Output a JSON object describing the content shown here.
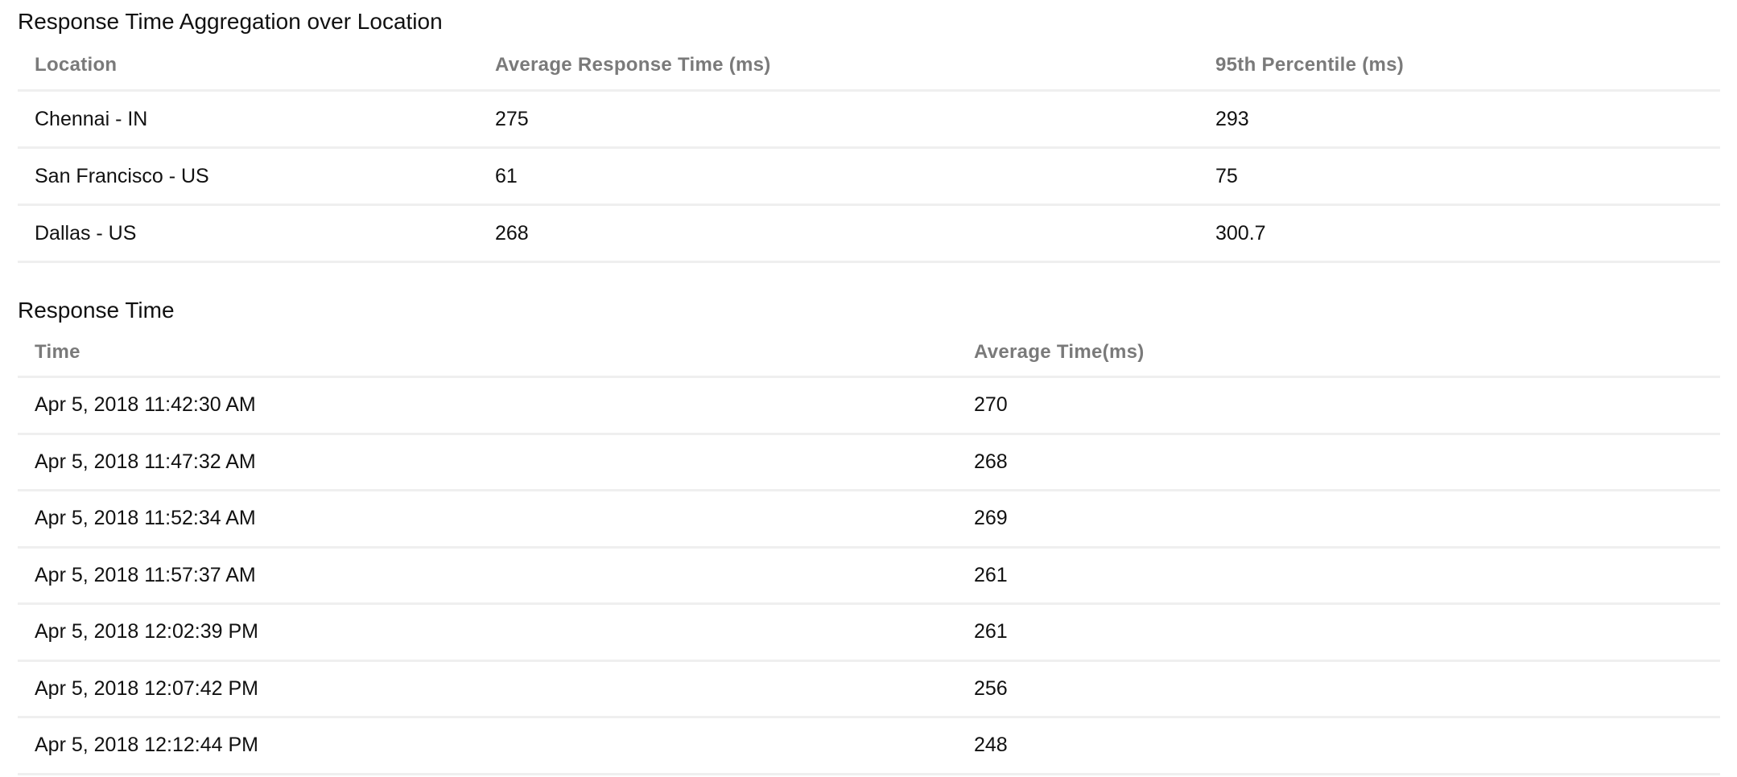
{
  "aggregation": {
    "title": "Response Time Aggregation over Location",
    "columns": [
      "Location",
      "Average Response Time (ms)",
      "95th Percentile (ms)"
    ],
    "rows": [
      [
        "Chennai - IN",
        "275",
        "293"
      ],
      [
        "San Francisco - US",
        "61",
        "75"
      ],
      [
        "Dallas - US",
        "268",
        "300.7"
      ]
    ]
  },
  "response_time": {
    "title": "Response Time",
    "columns": [
      "Time",
      "Average Time(ms)"
    ],
    "rows": [
      [
        "Apr 5, 2018 11:42:30 AM",
        "270"
      ],
      [
        "Apr 5, 2018 11:47:32 AM",
        "268"
      ],
      [
        "Apr 5, 2018 11:52:34 AM",
        "269"
      ],
      [
        "Apr 5, 2018 11:57:37 AM",
        "261"
      ],
      [
        "Apr 5, 2018 12:02:39 PM",
        "261"
      ],
      [
        "Apr 5, 2018 12:07:42 PM",
        "256"
      ],
      [
        "Apr 5, 2018 12:12:44 PM",
        "248"
      ]
    ]
  }
}
